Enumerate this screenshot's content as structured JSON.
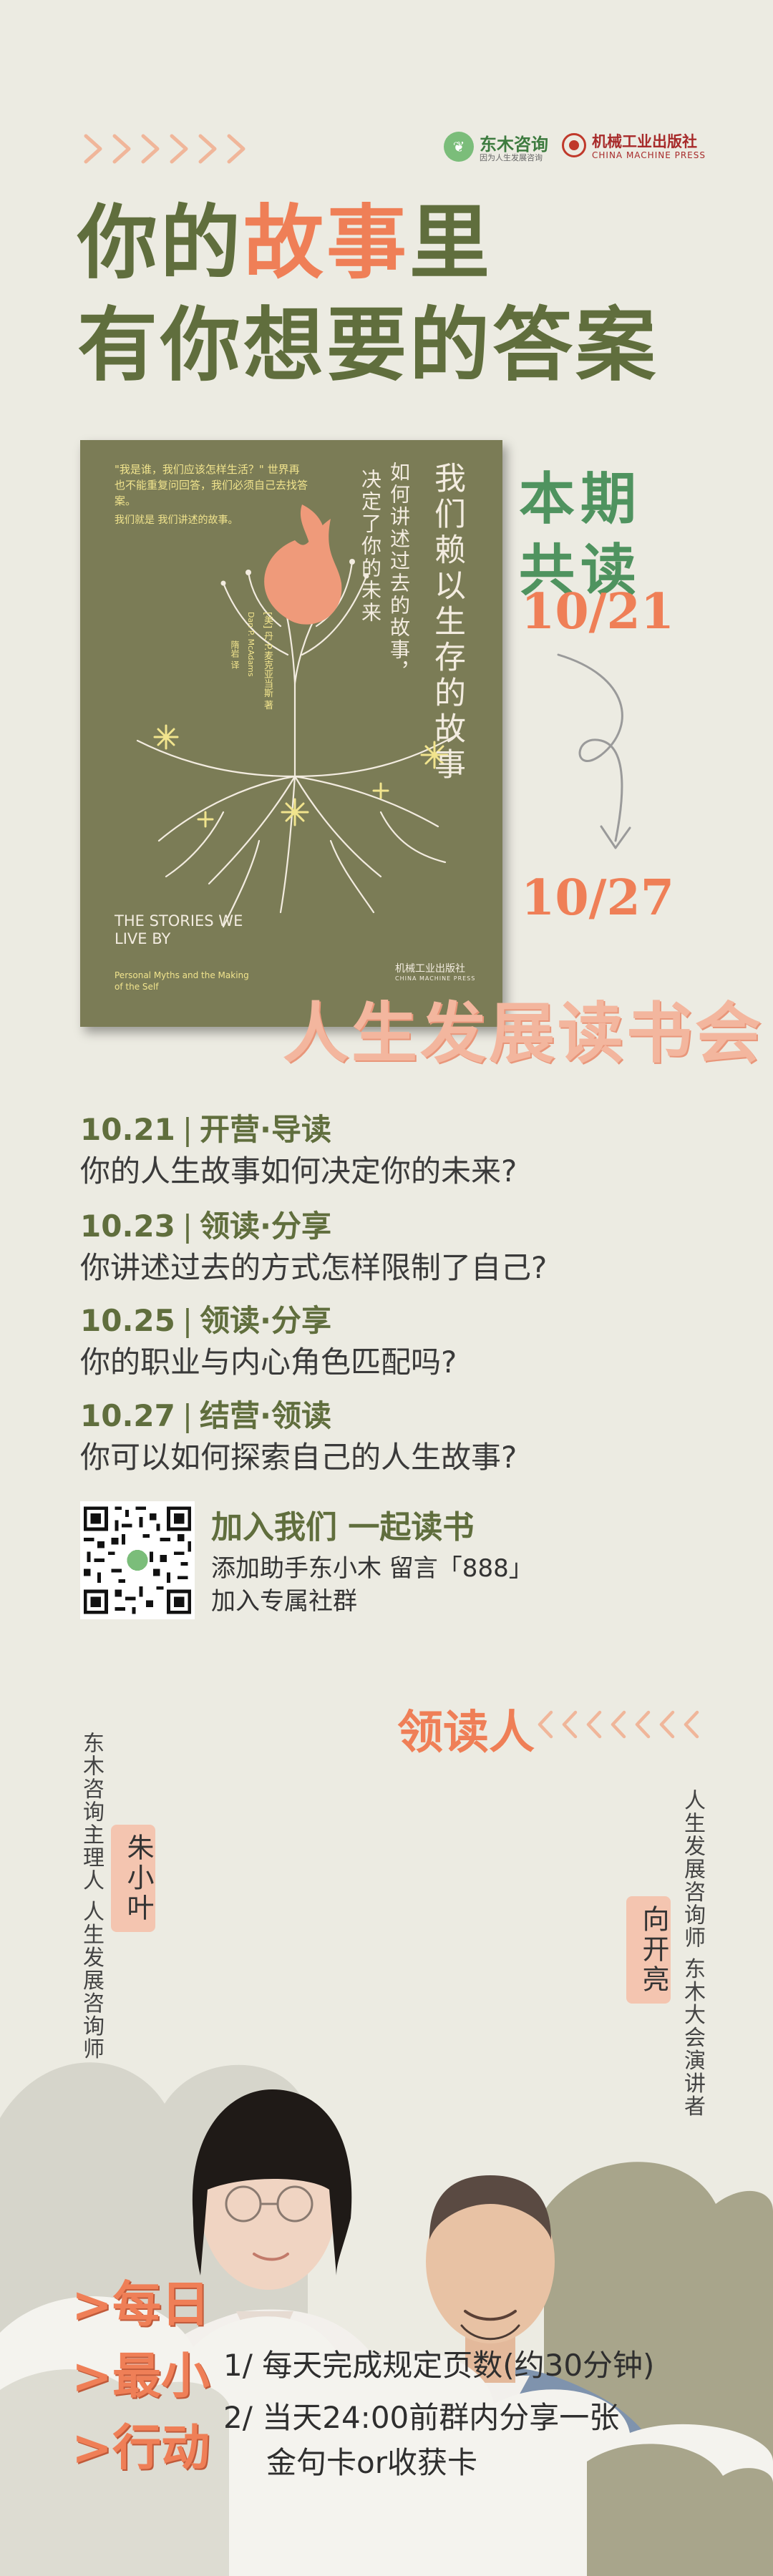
{
  "brand": {
    "dongmu_name": "东木咨询",
    "dongmu_slogan": "因为人生发展咨询",
    "publisher_name": "机械工业出版社",
    "publisher_en": "CHINA MACHINE PRESS"
  },
  "headline": {
    "line1_pre": "你的",
    "line1_accent": "故事",
    "line1_post": "里",
    "line2": "有你想要的答案"
  },
  "book": {
    "quote": "\"我是谁，我们应该怎样生活？\" 世界再也不能重复问回答，我们必须自己去找答案。",
    "quote2": "我们就是 我们讲述的故事。",
    "title_cn": "我们赖以生存的故事",
    "subtitle_1": "如何讲述过去的故事，",
    "subtitle_2": "决定了你的未来",
    "author_cn": "[美] 丹·P.麦克亚当斯 著",
    "author_en": "Dan P. McAdams",
    "translator": "隋岩 译",
    "title_en": "THE STORIES WE LIVE BY",
    "title_en_sub": "Personal Myths and the Making of the Self",
    "publisher": "机械工业出版社",
    "publisher_en": "CHINA MACHINE PRESS"
  },
  "period": {
    "label_1": "本期",
    "label_2": "共读",
    "start": "10/21",
    "end": "10/27"
  },
  "club_title": "人生发展读书会",
  "schedule": [
    {
      "date": "10.21",
      "type": "开营·导读",
      "question": "你的人生故事如何决定你的未来?"
    },
    {
      "date": "10.23",
      "type": "领读·分享",
      "question": "你讲述过去的方式怎样限制了自己?"
    },
    {
      "date": "10.25",
      "type": "领读·分享",
      "question": "你的职业与内心角色匹配吗?"
    },
    {
      "date": "10.27",
      "type": "结营·领读",
      "question": "你可以如何探索自己的人生故事?"
    }
  ],
  "schedule_separator": "|",
  "join": {
    "title": "加入我们 一起读书",
    "line_1": "添加助手东小木 留言「888」",
    "line_2": "加入专属社群"
  },
  "leaders": {
    "title": "领读人",
    "items": [
      {
        "name": "朱小叶",
        "role": "东木咨询主理人 人生发展咨询师"
      },
      {
        "name": "向开亮",
        "role": "人生发展咨询师 东木大会演讲者"
      }
    ]
  },
  "action": {
    "heads": [
      ">每日",
      ">最小",
      ">行动"
    ],
    "rules": [
      "1/ 每天完成规定页数(约30分钟)",
      "2/ 当天24:00前群内分享一张",
      "金句卡or收获卡"
    ]
  },
  "colors": {
    "background": "#ecebe2",
    "olive": "#606e3d",
    "accent": "#ef7f57",
    "green": "#4f935f",
    "book_cover": "#7b7c56"
  }
}
